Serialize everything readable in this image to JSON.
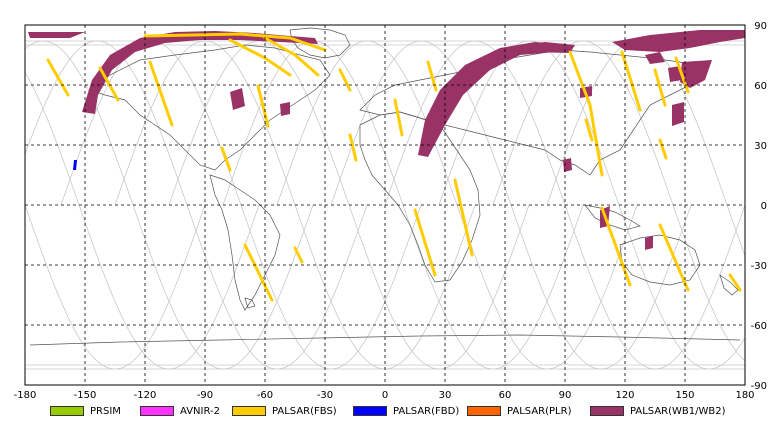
{
  "map": {
    "x_ticks": [
      "-180",
      "-150",
      "-120",
      "-90",
      "-60",
      "-30",
      "0",
      "30",
      "60",
      "90",
      "120",
      "150",
      "180"
    ],
    "y_ticks": [
      "90",
      "60",
      "30",
      "0",
      "-30",
      "-60",
      "-90"
    ]
  },
  "legend": [
    {
      "label": "PRSIM",
      "color": "#99cc00"
    },
    {
      "label": "AVNIR-2",
      "color": "#ff33ff"
    },
    {
      "label": "PALSAR(FBS)",
      "color": "#ffcc00"
    },
    {
      "label": "PALSAR(FBD)",
      "color": "#0000ff"
    },
    {
      "label": "PALSAR(PLR)",
      "color": "#ff6600"
    },
    {
      "label": "PALSAR(WB1/WB2)",
      "color": "#993366"
    }
  ],
  "colors": {
    "grid": "#000000",
    "orbit": "#c8c8c8",
    "coast": "#555555",
    "fbs": "#ffcc00",
    "wb": "#993366",
    "fbd": "#0000ff"
  }
}
